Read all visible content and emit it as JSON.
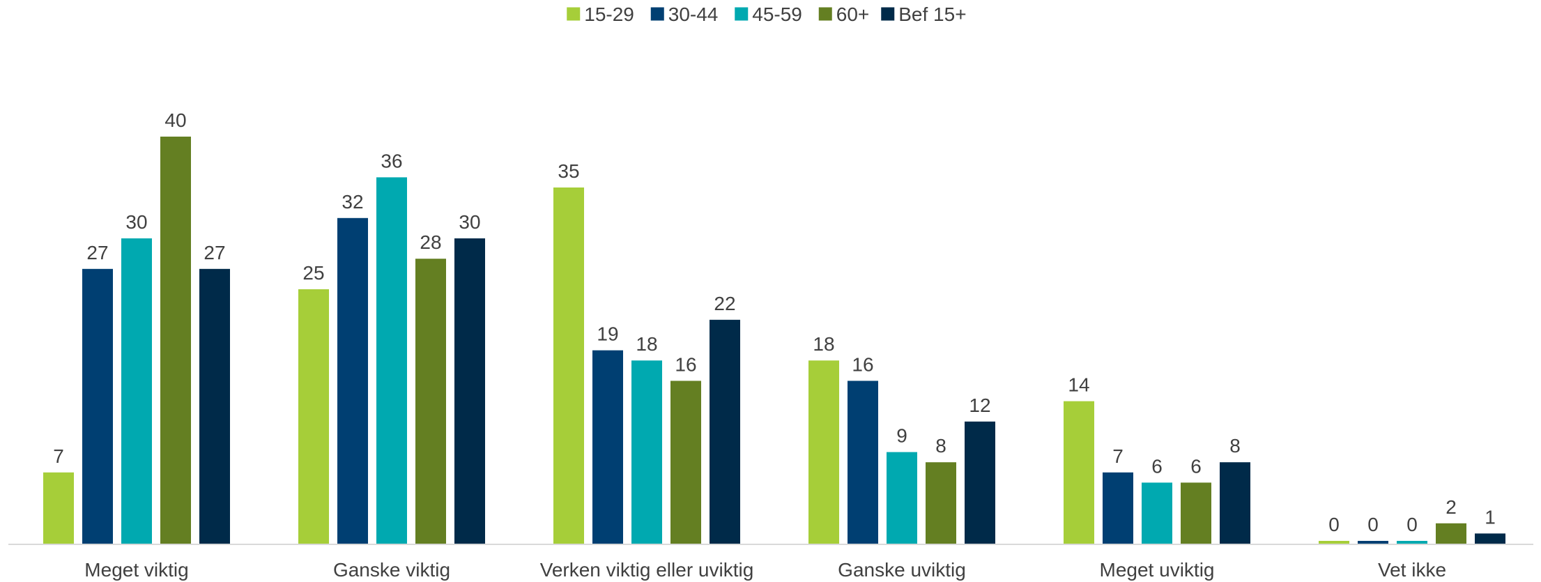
{
  "chart_data": {
    "type": "bar",
    "categories": [
      "Meget viktig",
      "Ganske viktig",
      "Verken viktig eller uviktig",
      "Ganske uviktig",
      "Meget uviktig",
      "Vet ikke"
    ],
    "series": [
      {
        "name": "15-29",
        "color": "#a6ce39",
        "values": [
          7,
          25,
          35,
          18,
          14,
          0
        ]
      },
      {
        "name": "30-44",
        "color": "#003f72",
        "values": [
          27,
          32,
          19,
          16,
          7,
          0
        ]
      },
      {
        "name": "45-59",
        "color": "#00a9b0",
        "values": [
          30,
          36,
          18,
          9,
          6,
          0
        ]
      },
      {
        "name": "60+",
        "color": "#647f22",
        "values": [
          40,
          28,
          16,
          8,
          6,
          2
        ]
      },
      {
        "name": "Bef 15+",
        "color": "#002a49",
        "values": [
          27,
          30,
          22,
          12,
          8,
          1
        ]
      }
    ],
    "ylim": [
      0,
      45
    ],
    "grid": false,
    "legend_position": "top-center",
    "data_labels": true
  }
}
